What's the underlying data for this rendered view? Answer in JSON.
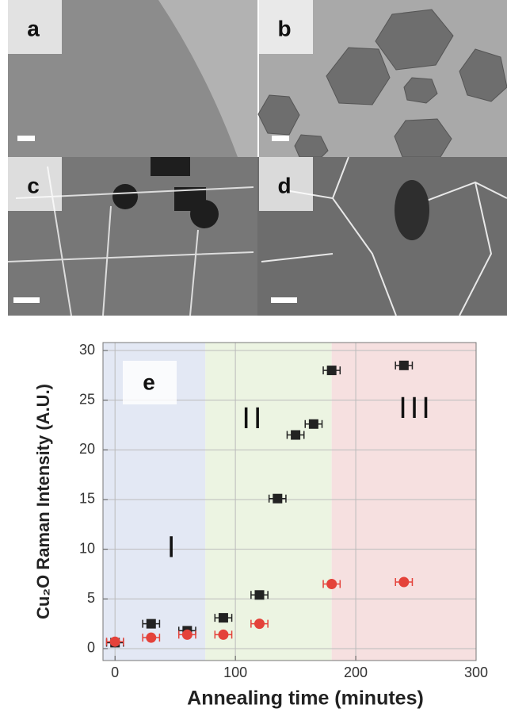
{
  "panels": [
    "a",
    "b",
    "c",
    "d"
  ],
  "chart_data": {
    "type": "scatter",
    "panel_label": "e",
    "x_label": "Annealing time (minutes)",
    "y_label": "Cu₂O Raman Intensity (A.U.)",
    "xlim": [
      -10,
      300
    ],
    "ylim": [
      -1.2,
      30.8
    ],
    "xticks": [
      0,
      100,
      200,
      300
    ],
    "yticks": [
      0,
      5,
      10,
      15,
      20,
      25,
      30
    ],
    "grid": true,
    "regions": [
      {
        "label": "I",
        "start": -10,
        "end": 75,
        "color": "#e3e8f4"
      },
      {
        "label": "II",
        "start": 75,
        "end": 180,
        "color": "#ecf4e2"
      },
      {
        "label": "III",
        "start": 180,
        "end": 300,
        "color": "#f6e0e0"
      }
    ],
    "series": [
      {
        "color": "#222222",
        "marker": "square",
        "x_error": 7,
        "x": [
          0,
          30,
          60,
          90,
          120,
          135,
          150,
          165,
          180,
          240
        ],
        "values": [
          0.6,
          2.5,
          1.8,
          3.1,
          5.4,
          15.1,
          21.5,
          22.6,
          28,
          28.5
        ]
      },
      {
        "color": "#e4423a",
        "marker": "circle",
        "x_error": 7,
        "x": [
          0,
          30,
          60,
          90,
          120,
          180,
          240
        ],
        "values": [
          0.7,
          1.1,
          1.4,
          1.4,
          2.5,
          6.5,
          6.7
        ]
      }
    ]
  }
}
